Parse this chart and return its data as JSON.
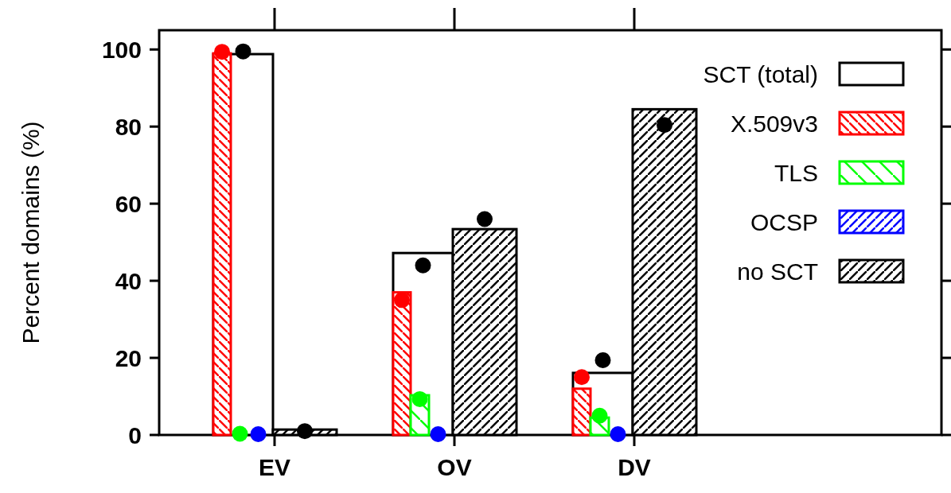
{
  "chart_data": {
    "type": "bar",
    "ylabel": "Percent domains (%)",
    "categories": [
      "EV",
      "OV",
      "DV"
    ],
    "ylim": [
      0,
      105
    ],
    "yticks": [
      0,
      20,
      40,
      60,
      80,
      100
    ],
    "legend": "top right",
    "marker": "circle",
    "series": [
      {
        "name": "SCT (total)",
        "color": "#000000",
        "values": [
          98.8,
          47.2,
          16.1
        ]
      },
      {
        "name": "X.509v3",
        "color": "#ff0000",
        "values": [
          99,
          37,
          12
        ]
      },
      {
        "name": "TLS",
        "color": "#00ff00",
        "values": [
          0,
          10.3,
          4.5
        ]
      },
      {
        "name": "OCSP",
        "color": "#0000ff",
        "values": [
          0,
          0,
          0
        ]
      },
      {
        "name": "no SCT",
        "color": "#000000",
        "values": [
          1.4,
          53.4,
          84.5
        ]
      },
      {
        "type": "scatter",
        "x": [
          "EV",
          "OV",
          "DV"
        ],
        "color": "#000000",
        "values": [
          99.5,
          44,
          19.4
        ]
      },
      {
        "type": "scatter",
        "x": [
          "EV",
          "OV",
          "DV"
        ],
        "color": "#ff0000",
        "values": [
          99.4,
          35,
          15
        ]
      },
      {
        "type": "scatter",
        "x": [
          "EV",
          "OV",
          "DV"
        ],
        "color": "#00ff00",
        "values": [
          0.3,
          9.3,
          5
        ]
      },
      {
        "type": "scatter",
        "x": [
          "EV",
          "OV",
          "DV"
        ],
        "color": "#0000ff",
        "values": [
          0.2,
          0.2,
          0.2
        ]
      },
      {
        "type": "scatter",
        "x": [
          "EV",
          "OV",
          "DV"
        ],
        "color": "#000000",
        "values": [
          1,
          56,
          80.4
        ]
      }
    ]
  }
}
